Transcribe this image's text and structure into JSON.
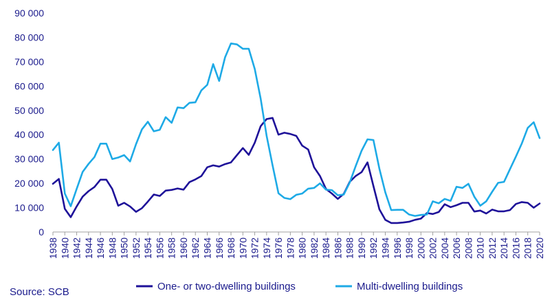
{
  "chart_data": {
    "type": "line",
    "title": "",
    "xlabel": "",
    "ylabel": "",
    "x": [
      1938,
      1939,
      1940,
      1941,
      1942,
      1943,
      1944,
      1945,
      1946,
      1947,
      1948,
      1949,
      1950,
      1951,
      1952,
      1953,
      1954,
      1955,
      1956,
      1957,
      1958,
      1959,
      1960,
      1961,
      1962,
      1963,
      1964,
      1965,
      1966,
      1967,
      1968,
      1969,
      1970,
      1971,
      1972,
      1973,
      1974,
      1975,
      1976,
      1977,
      1978,
      1979,
      1980,
      1981,
      1982,
      1983,
      1984,
      1985,
      1986,
      1987,
      1988,
      1989,
      1990,
      1991,
      1992,
      1993,
      1994,
      1995,
      1996,
      1997,
      1998,
      1999,
      2000,
      2001,
      2002,
      2003,
      2004,
      2005,
      2006,
      2007,
      2008,
      2009,
      2010,
      2011,
      2012,
      2013,
      2014,
      2015,
      2016,
      2017,
      2018,
      2019,
      2020
    ],
    "xlim": [
      1938,
      2020
    ],
    "ylim": [
      0,
      90000
    ],
    "y_ticks": [
      0,
      10000,
      20000,
      30000,
      40000,
      50000,
      60000,
      70000,
      80000,
      90000
    ],
    "y_tick_labels": [
      "0",
      "10 000",
      "20 000",
      "30 000",
      "40 000",
      "50 000",
      "60 000",
      "70 000",
      "80 000",
      "90 000"
    ],
    "x_ticks": [
      1938,
      1940,
      1942,
      1944,
      1946,
      1948,
      1950,
      1952,
      1954,
      1956,
      1958,
      1960,
      1962,
      1964,
      1966,
      1968,
      1970,
      1972,
      1974,
      1976,
      1978,
      1980,
      1982,
      1984,
      1986,
      1988,
      1990,
      1992,
      1994,
      1996,
      1998,
      2000,
      2002,
      2004,
      2006,
      2008,
      2010,
      2012,
      2014,
      2016,
      2018,
      2020
    ],
    "grid": false,
    "series": [
      {
        "name": "One- or two-dwelling buildings",
        "color": "#1e1199",
        "values": [
          19800,
          21800,
          9500,
          6100,
          10500,
          14500,
          16800,
          18500,
          21500,
          21500,
          17700,
          10800,
          12000,
          10500,
          8300,
          9800,
          12500,
          15400,
          14800,
          17000,
          17300,
          17900,
          17400,
          20500,
          21600,
          23000,
          26600,
          27400,
          26900,
          27900,
          28600,
          31600,
          34500,
          31700,
          36700,
          43500,
          46400,
          46900,
          40000,
          40800,
          40300,
          39500,
          35500,
          33900,
          26600,
          23000,
          17700,
          15800,
          13600,
          15700,
          20600,
          23000,
          24600,
          28600,
          18900,
          9300,
          5000,
          3700,
          3700,
          3900,
          4200,
          5000,
          5500,
          7800,
          7400,
          8200,
          11400,
          10200,
          11000,
          12000,
          12000,
          8400,
          8800,
          7600,
          9200,
          8500,
          8500,
          9000,
          11500,
          12300,
          12000,
          10000,
          11700
        ]
      },
      {
        "name": "Multi-dwelling buildings",
        "color": "#1eaae6",
        "values": [
          33700,
          36700,
          15800,
          10600,
          17700,
          24700,
          28000,
          30800,
          36300,
          36300,
          30000,
          30600,
          31600,
          29000,
          36100,
          42200,
          45300,
          41400,
          42000,
          47200,
          44900,
          51200,
          50900,
          53100,
          53300,
          58200,
          60500,
          69000,
          62100,
          71800,
          77500,
          77100,
          75300,
          75300,
          67000,
          54800,
          39600,
          27400,
          15900,
          14000,
          13500,
          15300,
          15800,
          17800,
          18100,
          20000,
          17400,
          17200,
          15100,
          15400,
          20300,
          27000,
          33400,
          38100,
          37800,
          26000,
          16300,
          9000,
          9100,
          9100,
          7200,
          6600,
          7000,
          7200,
          12600,
          11800,
          13600,
          12800,
          18600,
          18100,
          19800,
          14500,
          10800,
          12600,
          16500,
          20200,
          20600,
          25800,
          31000,
          36400,
          42800,
          45100,
          38600
        ]
      }
    ]
  },
  "legend": {
    "items": [
      {
        "label": "One- or two-dwelling buildings",
        "color": "#1e1199"
      },
      {
        "label": "Multi-dwelling buildings",
        "color": "#1eaae6"
      }
    ]
  },
  "source": "Source: SCB"
}
